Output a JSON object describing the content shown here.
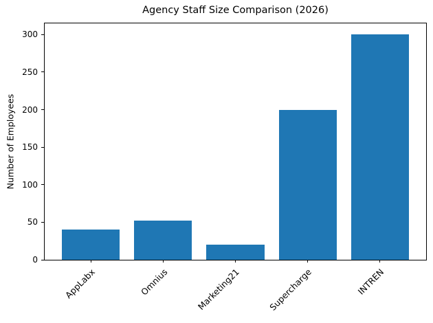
{
  "chart_data": {
    "type": "bar",
    "title": "Agency Staff Size Comparison (2026)",
    "xlabel": "",
    "ylabel": "Number of Employees",
    "categories": [
      "AppLabx",
      "Omnius",
      "Marketing21",
      "Supercharge",
      "INTREN"
    ],
    "values": [
      40,
      52,
      20,
      200,
      300
    ],
    "bar_color": "#1f77b4",
    "ylim": [
      0,
      315
    ],
    "yticks": [
      0,
      50,
      100,
      150,
      200,
      250,
      300
    ],
    "x_tick_rotation": 45,
    "grid": false,
    "legend": null,
    "background_color": "#ffffff",
    "axis_color": "#000000"
  }
}
